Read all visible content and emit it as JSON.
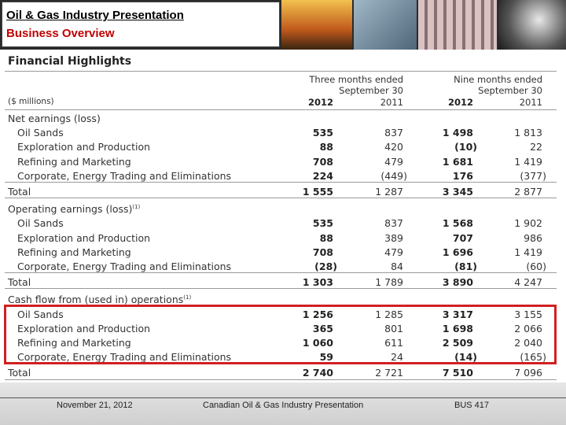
{
  "header": {
    "title": "Oil & Gas Industry Presentation",
    "subtitle": "Business Overview"
  },
  "table": {
    "title": "Financial Highlights",
    "group_headers": [
      [
        "Three months ended",
        "September 30"
      ],
      [
        "Nine months ended",
        "September 30"
      ]
    ],
    "unit": "($ millions)",
    "columns": [
      "2012",
      "2011",
      "2012",
      "2011"
    ],
    "sections": [
      {
        "label": "Net earnings (loss)",
        "rows": [
          {
            "label": "Oil Sands",
            "values": [
              "535",
              "837",
              "1 498",
              "1 813"
            ]
          },
          {
            "label": "Exploration and Production",
            "values": [
              "88",
              "420",
              "(10)",
              "22"
            ]
          },
          {
            "label": "Refining and Marketing",
            "values": [
              "708",
              "479",
              "1 681",
              "1 419"
            ]
          },
          {
            "label": "Corporate, Energy Trading and Eliminations",
            "values": [
              "224",
              "(449)",
              "176",
              "(377)"
            ]
          }
        ],
        "total": {
          "label": "Total",
          "values": [
            "1 555",
            "1 287",
            "3 345",
            "2 877"
          ]
        }
      },
      {
        "label": "Operating earnings (loss)",
        "note": "(1)",
        "rows": [
          {
            "label": "Oil Sands",
            "values": [
              "535",
              "837",
              "1 568",
              "1 902"
            ]
          },
          {
            "label": "Exploration and Production",
            "values": [
              "88",
              "389",
              "707",
              "986"
            ]
          },
          {
            "label": "Refining and Marketing",
            "values": [
              "708",
              "479",
              "1 696",
              "1 419"
            ]
          },
          {
            "label": "Corporate, Energy Trading and Eliminations",
            "values": [
              "(28)",
              "84",
              "(81)",
              "(60)"
            ]
          }
        ],
        "total": {
          "label": "Total",
          "values": [
            "1 303",
            "1 789",
            "3 890",
            "4 247"
          ]
        }
      },
      {
        "label": "Cash flow from (used in) operations",
        "note": "(1)",
        "rows": [
          {
            "label": "Oil Sands",
            "values": [
              "1 256",
              "1 285",
              "3 317",
              "3 155"
            ]
          },
          {
            "label": "Exploration and Production",
            "values": [
              "365",
              "801",
              "1 698",
              "2 066"
            ]
          },
          {
            "label": "Refining and Marketing",
            "values": [
              "1 060",
              "611",
              "2 509",
              "2 040"
            ]
          },
          {
            "label": "Corporate, Energy Trading and Eliminations",
            "values": [
              "59",
              "24",
              "(14)",
              "(165)"
            ]
          }
        ],
        "total": {
          "label": "Total",
          "values": [
            "2 740",
            "2 721",
            "7 510",
            "7 096"
          ]
        }
      }
    ]
  },
  "footer": {
    "date": "November 21, 2012",
    "center": "Canadian Oil & Gas Industry Presentation",
    "right": "BUS 417"
  }
}
